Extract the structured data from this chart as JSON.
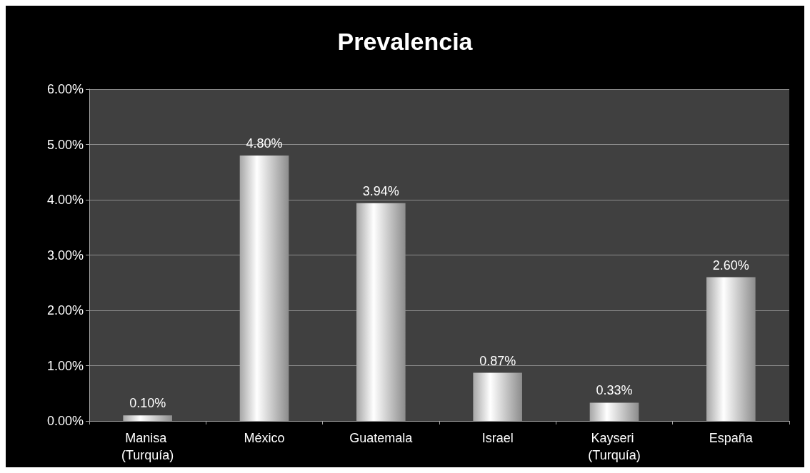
{
  "chart_data": {
    "type": "bar",
    "title": "Prevalencia",
    "categories": [
      "Manisa (Turquía)",
      "México",
      "Guatemala",
      "Israel",
      "Kayseri (Turquía)",
      "España"
    ],
    "values": [
      0.1,
      4.8,
      3.94,
      0.87,
      0.33,
      2.6
    ],
    "value_labels": [
      "0.10%",
      "4.80%",
      "3.94%",
      "0.87%",
      "0.33%",
      "2.60%"
    ],
    "color": "#ffffff",
    "ylim": [
      0,
      6
    ],
    "yticks": [
      {
        "value": 0,
        "label": "0.00%"
      },
      {
        "value": 1,
        "label": "1.00%"
      },
      {
        "value": 2,
        "label": "2.00%"
      },
      {
        "value": 3,
        "label": "3.00%"
      },
      {
        "value": 4,
        "label": "4.00%"
      },
      {
        "value": 5,
        "label": "5.00%"
      },
      {
        "value": 6,
        "label": "6.00%"
      }
    ],
    "grid": "y"
  }
}
